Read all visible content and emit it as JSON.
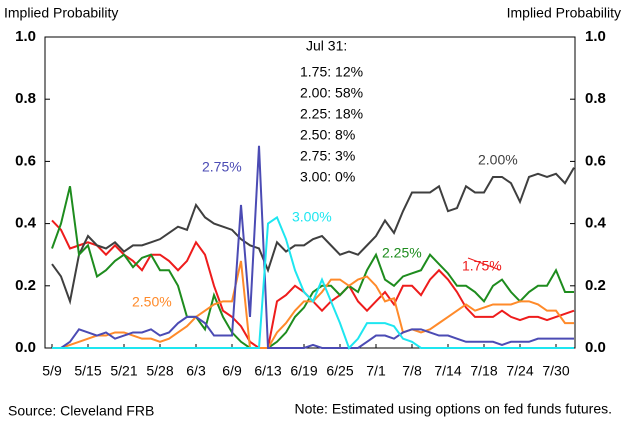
{
  "chart_data": {
    "type": "line",
    "left_axis_label": "Implied Probability",
    "right_axis_label": "Implied Probability",
    "categories": [
      "5/9",
      null,
      null,
      null,
      "5/15",
      null,
      null,
      null,
      "5/21",
      null,
      null,
      null,
      "5/28",
      null,
      null,
      null,
      "6/3",
      null,
      null,
      null,
      "6/9",
      null,
      null,
      null,
      "6/13",
      null,
      null,
      null,
      "6/19",
      null,
      null,
      null,
      "6/25",
      null,
      null,
      null,
      "7/1",
      null,
      null,
      null,
      "7/8",
      null,
      null,
      null,
      "7/14",
      null,
      null,
      null,
      "7/18",
      null,
      null,
      null,
      "7/24",
      null,
      null,
      null,
      "7/30",
      null,
      null
    ],
    "ylim": [
      0,
      1
    ],
    "yticks": [
      {
        "value": 0,
        "label": "0.0"
      },
      {
        "value": 0.2,
        "label": "0.2"
      },
      {
        "value": 0.4,
        "label": "0.4"
      },
      {
        "value": 0.6,
        "label": "0.6"
      },
      {
        "value": 0.8,
        "label": "0.8"
      },
      {
        "value": 1,
        "label": "1.0"
      }
    ],
    "y2lim": [
      0,
      1
    ],
    "y2ticks": [
      {
        "value": 0,
        "label": "0.0"
      },
      {
        "value": 0.2,
        "label": "0.2"
      },
      {
        "value": 0.4,
        "label": "0.4"
      },
      {
        "value": 0.6,
        "label": "0.6"
      },
      {
        "value": 0.8,
        "label": "0.8"
      },
      {
        "value": 1,
        "label": "1.0"
      }
    ],
    "grid": false,
    "series": [
      {
        "name": "1.75%",
        "color": "#ee1c1c",
        "values": [
          0.41,
          0.38,
          0.32,
          0.33,
          0.34,
          0.33,
          0.3,
          0.33,
          0.3,
          0.28,
          0.25,
          0.3,
          0.3,
          0.28,
          0.25,
          0.28,
          0.34,
          0.3,
          0.2,
          0.12,
          0.1,
          0.07,
          0.02,
          0,
          0,
          0.15,
          0.17,
          0.2,
          0.18,
          0.15,
          0.12,
          0.15,
          0.17,
          0.2,
          0.15,
          0.12,
          0.15,
          0.18,
          0.14,
          0.2,
          0.2,
          0.17,
          0.22,
          0.25,
          0.22,
          0.18,
          0.13,
          0.1,
          0.1,
          0.1,
          0.12,
          0.1,
          0.09,
          0.1,
          0.1,
          0.09,
          0.1,
          0.11,
          0.12
        ]
      },
      {
        "name": "2.00%",
        "color": "#3f3f3f",
        "values": [
          0.27,
          0.23,
          0.15,
          0.3,
          0.36,
          0.33,
          0.32,
          0.34,
          0.31,
          0.33,
          0.33,
          0.34,
          0.35,
          0.37,
          0.39,
          0.38,
          0.46,
          0.42,
          0.4,
          0.39,
          0.38,
          0.35,
          0.33,
          0.32,
          0.25,
          0.34,
          0.31,
          0.33,
          0.33,
          0.35,
          0.36,
          0.33,
          0.3,
          0.31,
          0.3,
          0.33,
          0.36,
          0.41,
          0.37,
          0.44,
          0.5,
          0.5,
          0.5,
          0.52,
          0.44,
          0.45,
          0.52,
          0.5,
          0.5,
          0.55,
          0.55,
          0.53,
          0.47,
          0.55,
          0.56,
          0.55,
          0.56,
          0.53,
          0.58
        ]
      },
      {
        "name": "2.25%",
        "color": "#1e8c1e",
        "values": [
          0.32,
          0.4,
          0.52,
          0.3,
          0.33,
          0.23,
          0.25,
          0.28,
          0.3,
          0.26,
          0.29,
          0.3,
          0.25,
          0.25,
          0.2,
          0.1,
          0.1,
          0.06,
          0.17,
          0.1,
          0.05,
          0.02,
          0,
          0,
          0,
          0.02,
          0.05,
          0.1,
          0.13,
          0.18,
          0.2,
          0.2,
          0.17,
          0.2,
          0.18,
          0.25,
          0.3,
          0.22,
          0.2,
          0.23,
          0.24,
          0.25,
          0.3,
          0.27,
          0.24,
          0.2,
          0.2,
          0.18,
          0.15,
          0.2,
          0.22,
          0.18,
          0.15,
          0.18,
          0.2,
          0.2,
          0.25,
          0.18,
          0.18
        ]
      },
      {
        "name": "2.50%",
        "color": "#ff8a2a",
        "values": [
          0,
          0,
          0.01,
          0.02,
          0.03,
          0.04,
          0.04,
          0.05,
          0.05,
          0.04,
          0.03,
          0.03,
          0.02,
          0.03,
          0.05,
          0.07,
          0.1,
          0.12,
          0.14,
          0.15,
          0.15,
          0.28,
          0,
          0,
          0,
          0.05,
          0.08,
          0.12,
          0.15,
          0.15,
          0.18,
          0.22,
          0.22,
          0.2,
          0.22,
          0.23,
          0.2,
          0.15,
          0.16,
          0.05,
          0.06,
          0.05,
          0.06,
          0.08,
          0.1,
          0.12,
          0.14,
          0.12,
          0.13,
          0.14,
          0.14,
          0.14,
          0.15,
          0.15,
          0.14,
          0.12,
          0.12,
          0.08,
          0.08
        ]
      },
      {
        "name": "2.75%",
        "color": "#4b4bb4",
        "values": [
          0,
          0,
          0.02,
          0.06,
          0.05,
          0.04,
          0.05,
          0.03,
          0.04,
          0.05,
          0.05,
          0.06,
          0.04,
          0.05,
          0.08,
          0.1,
          0.1,
          0.08,
          0.04,
          0.04,
          0.04,
          0.46,
          0.1,
          0.65,
          0,
          0,
          0,
          0,
          0,
          0.01,
          0,
          0,
          0,
          0,
          0,
          0.02,
          0.04,
          0.04,
          0.03,
          0.05,
          0.06,
          0.06,
          0.05,
          0.04,
          0.04,
          0.03,
          0.02,
          0.02,
          0.02,
          0.02,
          0.01,
          0.02,
          0.02,
          0.02,
          0.03,
          0.03,
          0.03,
          0.03,
          0.03
        ]
      },
      {
        "name": "3.00%",
        "color": "#1ee6f0",
        "values": [
          0,
          0,
          0,
          0,
          0,
          0,
          0,
          0,
          0,
          0,
          0,
          0,
          0,
          0,
          0,
          0,
          0,
          0,
          0,
          0,
          0,
          0,
          0,
          0,
          0.4,
          0.42,
          0.35,
          0.25,
          0.18,
          0.15,
          0.22,
          0.15,
          0.08,
          0,
          0.03,
          0.08,
          0.08,
          0.08,
          0.07,
          0.03,
          0.02,
          0,
          0,
          0,
          0,
          0,
          0,
          0,
          0,
          0,
          0,
          0,
          0,
          0,
          0,
          0,
          0,
          0,
          0
        ]
      }
    ],
    "annotation_title": "Jul 31:",
    "annotation_lines": [
      "1.75: 12%",
      "2.00: 58%",
      "2.25: 18%",
      "2.50: 8%",
      "2.75: 3%",
      "3.00: 0%"
    ],
    "source": "Source: Cleveland FRB",
    "note": "Note: Estimated using options on fed funds futures."
  }
}
